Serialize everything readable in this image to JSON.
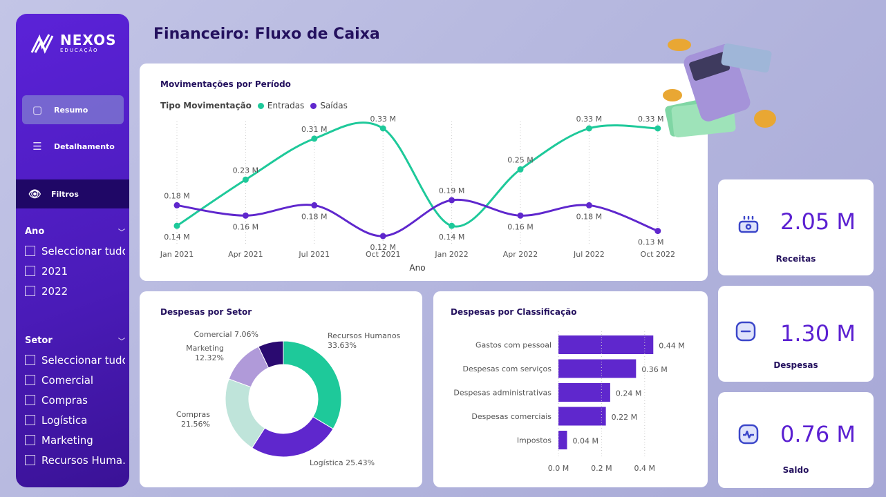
{
  "sidebar": {
    "logo_brand": "NEXOS",
    "logo_sub": "EDUCAÇÃO",
    "nav": [
      {
        "label": "Resumo",
        "icon": "layout-icon"
      },
      {
        "label": "Detalhamento",
        "icon": "menu-icon"
      }
    ],
    "filters_label": "Filtros",
    "filter_groups": [
      {
        "title": "Ano",
        "items": [
          "Seleccionar tudo",
          "2021",
          "2022"
        ]
      },
      {
        "title": "Setor",
        "items": [
          "Seleccionar tudo",
          "Comercial",
          "Compras",
          "Logística",
          "Marketing",
          "Recursos Huma..."
        ]
      }
    ]
  },
  "header": {
    "title": "Financeiro: Fluxo de Caixa"
  },
  "kpis": [
    {
      "value": "2.05 M",
      "label": "Receitas",
      "icon": "money-icon"
    },
    {
      "value": "1.30 M",
      "label": "Despesas",
      "icon": "minus-icon"
    },
    {
      "value": "0.76 M",
      "label": "Saldo",
      "icon": "pulse-icon"
    }
  ],
  "colors": {
    "entradas": "#1ec99a",
    "saidas": "#5f27cd",
    "accent": "#5a1fd1"
  },
  "chart_data": [
    {
      "type": "line",
      "title": "Movimentações por Período",
      "legend_title": "Tipo Movimentação",
      "xlabel": "Ano",
      "legend": "top-left",
      "categories": [
        "Jan 2021",
        "Apr 2021",
        "Jul 2021",
        "Oct 2021",
        "Jan 2022",
        "Apr 2022",
        "Jul 2022",
        "Oct 2022"
      ],
      "series": [
        {
          "name": "Entradas",
          "values": [
            0.14,
            0.23,
            0.31,
            0.33,
            0.14,
            0.25,
            0.33,
            0.33
          ],
          "labels": [
            "0.14 M",
            "0.23 M",
            "0.31 M",
            "0.33 M",
            "0.14 M",
            "0.25 M",
            "0.33 M",
            "0.33 M"
          ]
        },
        {
          "name": "Saídas",
          "values": [
            0.18,
            0.16,
            0.18,
            0.12,
            0.19,
            0.16,
            0.18,
            0.13
          ],
          "labels": [
            "0.18 M",
            "0.16 M",
            "0.18 M",
            "0.12 M",
            "0.19 M",
            "0.16 M",
            "0.18 M",
            "0.13 M"
          ]
        }
      ]
    },
    {
      "type": "pie",
      "title": "Despesas por Setor",
      "donut": true,
      "slices": [
        {
          "name": "Recursos Humanos",
          "value": 33.63,
          "label": "33.63%",
          "color": "#1ec99a"
        },
        {
          "name": "Logística",
          "value": 25.43,
          "label": "25.43%",
          "color": "#5f27cd"
        },
        {
          "name": "Compras",
          "value": 21.56,
          "label": "21.56%",
          "color": "#bfe4da"
        },
        {
          "name": "Marketing",
          "value": 12.32,
          "label": "12.32%",
          "color": "#b09ad9"
        },
        {
          "name": "Comercial",
          "value": 7.06,
          "label": "7.06%",
          "color": "#2a0a70"
        }
      ]
    },
    {
      "type": "bar",
      "orientation": "horizontal",
      "title": "Despesas por Classificação",
      "categories": [
        "Gastos com pessoal",
        "Despesas com serviços",
        "Despesas administrativas",
        "Despesas comerciais",
        "Impostos"
      ],
      "values": [
        0.44,
        0.36,
        0.24,
        0.22,
        0.04
      ],
      "labels": [
        "0.44 M",
        "0.36 M",
        "0.24 M",
        "0.22 M",
        "0.04 M"
      ],
      "xticks": [
        "0.0 M",
        "0.2 M",
        "0.4 M"
      ],
      "xlim": [
        0,
        0.5
      ],
      "color": "#5f27cd"
    }
  ]
}
